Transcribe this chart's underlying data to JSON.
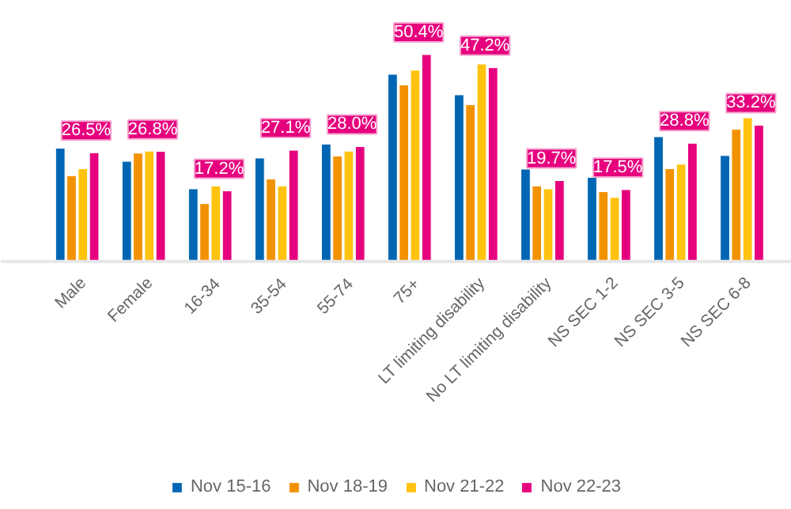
{
  "chart_data": {
    "type": "bar",
    "categories": [
      "Male",
      "Female",
      "16-34",
      "35-54",
      "55-74",
      "75+",
      "LT limiting disability",
      "No LT limiting disability",
      "NS SEC 1-2",
      "NS SEC 3-5",
      "NS SEC 6-8"
    ],
    "series": [
      {
        "name": "Nov 15-16",
        "color": "#0066b3",
        "values": [
          27.6,
          24.4,
          17.7,
          25.2,
          28.6,
          45.6,
          40.6,
          22.5,
          20.5,
          30.4,
          25.8
        ]
      },
      {
        "name": "Nov 18-19",
        "color": "#f39200",
        "values": [
          20.9,
          26.4,
          14.1,
          20.1,
          25.7,
          43.0,
          38.2,
          18.4,
          17.0,
          22.6,
          32.2
        ]
      },
      {
        "name": "Nov 21-22",
        "color": "#ffc20e",
        "values": [
          22.6,
          26.9,
          18.4,
          18.4,
          26.9,
          46.6,
          48.1,
          17.7,
          15.6,
          23.7,
          35.0
        ]
      },
      {
        "name": "Nov 22-23",
        "color": "#e6007e",
        "values": [
          26.5,
          26.8,
          17.2,
          27.1,
          28.0,
          50.4,
          47.2,
          19.7,
          17.5,
          28.8,
          33.2
        ],
        "value_labels": [
          "26.5%",
          "26.8%",
          "17.2%",
          "27.1%",
          "28.0%",
          "50.4%",
          "47.2%",
          "19.7%",
          "17.5%",
          "28.8%",
          "33.2%"
        ]
      }
    ],
    "legend": "bottom"
  }
}
